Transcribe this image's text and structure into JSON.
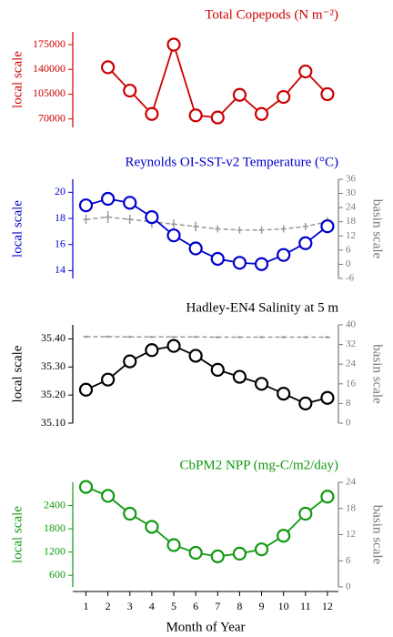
{
  "chart_data": [
    {
      "type": "line",
      "title": "Total Copepods (N m⁻²)",
      "ylabel": "local scale",
      "x": [
        1,
        2,
        3,
        4,
        5,
        6,
        7,
        8,
        9,
        10,
        11,
        12
      ],
      "xlim": [
        0.4,
        12.5
      ],
      "ylim": [
        58000,
        193000
      ],
      "yticks": [
        70000,
        105000,
        140000,
        175000
      ],
      "series": [
        {
          "color": "#cc0000",
          "values": [
            null,
            143000,
            110000,
            77000,
            175000,
            75000,
            72000,
            104000,
            77000,
            101000,
            137000,
            105000
          ]
        }
      ]
    },
    {
      "type": "line",
      "title": "Reynolds OI-SST-v2 Temperature (°C)",
      "ylabel": "local scale",
      "y2label": "basin scale",
      "x": [
        1,
        2,
        3,
        4,
        5,
        6,
        7,
        8,
        9,
        10,
        11,
        12
      ],
      "xlim": [
        0.4,
        12.5
      ],
      "ylim": [
        13.4,
        21
      ],
      "yticks": [
        14,
        16,
        18,
        20
      ],
      "y2lim": [
        -6,
        36
      ],
      "y2ticks": [
        -6,
        0,
        6,
        12,
        18,
        24,
        30,
        36
      ],
      "series": [
        {
          "color": "#0000cc",
          "values": [
            19.0,
            19.5,
            19.2,
            18.1,
            16.7,
            15.7,
            14.9,
            14.6,
            14.5,
            15.2,
            16.1,
            17.4
          ]
        },
        {
          "color": "#999999",
          "axis": "y2",
          "values": [
            19,
            20,
            19,
            18,
            17,
            16,
            15,
            14.5,
            14.5,
            15,
            16,
            18
          ],
          "errors": [
            2,
            2.5,
            2,
            2.5,
            2,
            2,
            1.5,
            1.5,
            1.5,
            1.5,
            1.5,
            2
          ]
        }
      ]
    },
    {
      "type": "line",
      "title": "Hadley-EN4 Salinity at 5 m",
      "ylabel": "local scale",
      "y2label": "basin scale",
      "x": [
        1,
        2,
        3,
        4,
        5,
        6,
        7,
        8,
        9,
        10,
        11,
        12
      ],
      "xlim": [
        0.4,
        12.5
      ],
      "ylim": [
        35.1,
        35.45
      ],
      "yticks": [
        {
          "value": 35.1,
          "label": "35.10"
        },
        {
          "value": 35.2,
          "label": "35.20"
        },
        {
          "value": 35.3,
          "label": "35.30"
        },
        {
          "value": 35.4,
          "label": "35.40"
        }
      ],
      "y2lim": [
        0,
        40
      ],
      "y2ticks": [
        0,
        8,
        16,
        24,
        32,
        40
      ],
      "series": [
        {
          "color": "#000000",
          "values": [
            35.219,
            35.255,
            35.32,
            35.36,
            35.375,
            35.34,
            35.29,
            35.265,
            35.24,
            35.205,
            35.17,
            35.19
          ]
        },
        {
          "color": "#999999",
          "axis": "y2",
          "values": [
            35.2,
            35.2,
            35.1,
            35.1,
            35.1,
            35.1,
            35.0,
            35.0,
            35.0,
            35.0,
            35.0,
            35.0
          ],
          "errors": [
            0.5,
            0.5,
            0.5,
            0.5,
            0.5,
            0.5,
            0.5,
            0.5,
            0.5,
            0.5,
            0.5,
            0.5
          ]
        }
      ]
    },
    {
      "type": "line",
      "title": "CbPM2 NPP (mg-C/m2/day)",
      "ylabel": "local scale",
      "y2label": "basin scale",
      "xlabel": "Month of Year",
      "x": [
        1,
        2,
        3,
        4,
        5,
        6,
        7,
        8,
        9,
        10,
        11,
        12
      ],
      "xlim": [
        0.4,
        12.5
      ],
      "xticks": [
        1,
        2,
        3,
        4,
        5,
        6,
        7,
        8,
        9,
        10,
        11,
        12
      ],
      "ylim": [
        300,
        3000
      ],
      "yticks": [
        600,
        1200,
        1800,
        2400
      ],
      "y2lim": [
        0,
        24
      ],
      "y2ticks": [
        0,
        6,
        12,
        18,
        24
      ],
      "series": [
        {
          "color": "#119911",
          "values": [
            2880,
            2650,
            2190,
            1850,
            1380,
            1180,
            1090,
            1160,
            1270,
            1620,
            2190,
            2630
          ]
        }
      ]
    }
  ]
}
